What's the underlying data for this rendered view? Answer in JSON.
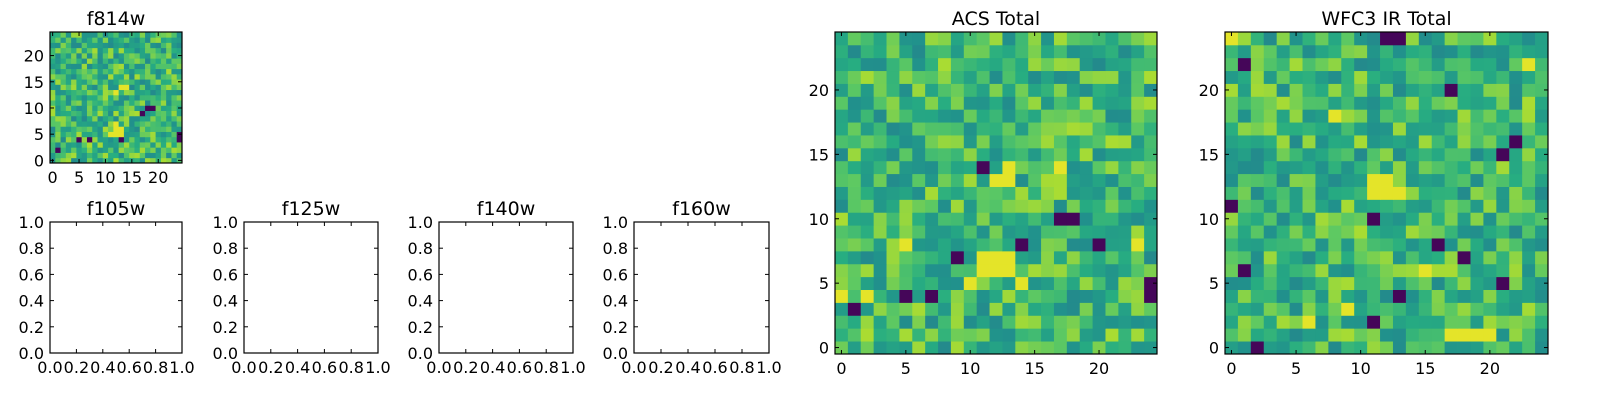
{
  "chart_data": [
    {
      "type": "heatmap",
      "title": "f814w",
      "x_ticks": [
        "0",
        "5",
        "10",
        "15",
        "20"
      ],
      "y_ticks": [
        "0",
        "5",
        "10",
        "15",
        "20"
      ],
      "xlim": [
        -0.5,
        24.5
      ],
      "ylim": [
        -0.5,
        24.5
      ],
      "grid_size": [
        25,
        25
      ],
      "colormap": "viridis",
      "hot_spots": [
        [
          12,
          6
        ],
        [
          13,
          6
        ],
        [
          12,
          7
        ],
        [
          11,
          5
        ],
        [
          13,
          5
        ],
        [
          12,
          13
        ],
        [
          13,
          14
        ],
        [
          14,
          14
        ],
        [
          11,
          5
        ],
        [
          12,
          5
        ]
      ],
      "dark_spots": [
        [
          18,
          10
        ],
        [
          19,
          10
        ],
        [
          24,
          4
        ],
        [
          24,
          5
        ],
        [
          1,
          2
        ],
        [
          7,
          4
        ],
        [
          5,
          4
        ],
        [
          13,
          4
        ],
        [
          17,
          9
        ]
      ]
    },
    {
      "type": "scatter",
      "title": "f105w",
      "x_ticks": [
        "0.0",
        "0.2",
        "0.4",
        "0.6",
        "0.8",
        "1.0"
      ],
      "y_ticks": [
        "0.0",
        "0.2",
        "0.4",
        "0.6",
        "0.8",
        "1.0"
      ],
      "xlim": [
        0,
        1
      ],
      "ylim": [
        0,
        1
      ],
      "series": []
    },
    {
      "type": "scatter",
      "title": "f125w",
      "x_ticks": [
        "0.0",
        "0.2",
        "0.4",
        "0.6",
        "0.8",
        "1.0"
      ],
      "y_ticks": [
        "0.0",
        "0.2",
        "0.4",
        "0.6",
        "0.8",
        "1.0"
      ],
      "xlim": [
        0,
        1
      ],
      "ylim": [
        0,
        1
      ],
      "series": []
    },
    {
      "type": "scatter",
      "title": "f140w",
      "x_ticks": [
        "0.0",
        "0.2",
        "0.4",
        "0.6",
        "0.8",
        "1.0"
      ],
      "y_ticks": [
        "0.0",
        "0.2",
        "0.4",
        "0.6",
        "0.8",
        "1.0"
      ],
      "xlim": [
        0,
        1
      ],
      "ylim": [
        0,
        1
      ],
      "series": []
    },
    {
      "type": "scatter",
      "title": "f160w",
      "x_ticks": [
        "0.0",
        "0.2",
        "0.4",
        "0.6",
        "0.8",
        "1.0"
      ],
      "y_ticks": [
        "0.0",
        "0.2",
        "0.4",
        "0.6",
        "0.8",
        "1.0"
      ],
      "xlim": [
        0,
        1
      ],
      "ylim": [
        0,
        1
      ],
      "series": []
    },
    {
      "type": "heatmap",
      "title": "ACS Total",
      "x_ticks": [
        "0",
        "5",
        "10",
        "15",
        "20"
      ],
      "y_ticks": [
        "0",
        "5",
        "10",
        "15",
        "20"
      ],
      "xlim": [
        -0.5,
        24.5
      ],
      "ylim": [
        -0.5,
        24.5
      ],
      "grid_size": [
        25,
        25
      ],
      "colormap": "viridis",
      "hot_spots": [
        [
          11,
          6
        ],
        [
          12,
          6
        ],
        [
          13,
          6
        ],
        [
          11,
          7
        ],
        [
          12,
          7
        ],
        [
          13,
          7
        ],
        [
          10,
          5
        ],
        [
          14,
          5
        ],
        [
          12,
          13
        ],
        [
          13,
          13
        ],
        [
          13,
          14
        ],
        [
          17,
          14
        ],
        [
          23,
          8
        ],
        [
          5,
          8
        ],
        [
          0,
          4
        ],
        [
          2,
          4
        ]
      ],
      "dark_spots": [
        [
          17,
          10
        ],
        [
          18,
          10
        ],
        [
          24,
          4
        ],
        [
          24,
          5
        ],
        [
          5,
          4
        ],
        [
          7,
          4
        ],
        [
          1,
          3
        ],
        [
          9,
          7
        ],
        [
          14,
          8
        ],
        [
          20,
          8
        ],
        [
          11,
          14
        ]
      ]
    },
    {
      "type": "heatmap",
      "title": "WFC3 IR Total",
      "x_ticks": [
        "0",
        "5",
        "10",
        "15",
        "20"
      ],
      "y_ticks": [
        "0",
        "5",
        "10",
        "15",
        "20"
      ],
      "xlim": [
        -0.5,
        24.5
      ],
      "ylim": [
        -0.5,
        24.5
      ],
      "grid_size": [
        25,
        25
      ],
      "colormap": "viridis",
      "hot_spots": [
        [
          11,
          12
        ],
        [
          12,
          12
        ],
        [
          13,
          12
        ],
        [
          12,
          13
        ],
        [
          11,
          13
        ],
        [
          17,
          1
        ],
        [
          18,
          1
        ],
        [
          19,
          1
        ],
        [
          20,
          1
        ],
        [
          0,
          24
        ],
        [
          15,
          6
        ],
        [
          23,
          22
        ],
        [
          6,
          2
        ],
        [
          9,
          3
        ],
        [
          8,
          18
        ]
      ],
      "dark_spots": [
        [
          12,
          24
        ],
        [
          13,
          24
        ],
        [
          2,
          0
        ],
        [
          1,
          22
        ],
        [
          17,
          20
        ],
        [
          11,
          2
        ],
        [
          21,
          5
        ],
        [
          0,
          11
        ],
        [
          16,
          8
        ],
        [
          21,
          15
        ],
        [
          22,
          16
        ],
        [
          13,
          4
        ],
        [
          1,
          6
        ],
        [
          18,
          7
        ],
        [
          11,
          10
        ]
      ]
    }
  ]
}
